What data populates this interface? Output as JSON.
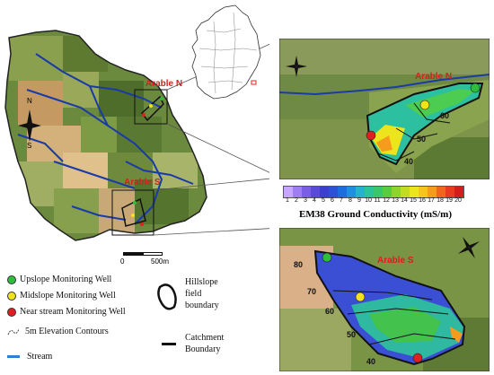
{
  "arable_north_label": "Arable N",
  "arable_south_label": "Arable S",
  "north_letter": "N",
  "south_letter": "S",
  "scale": {
    "zero": "0",
    "distance": "500m"
  },
  "colorbar": {
    "ticks": [
      "1",
      "2",
      "3",
      "4",
      "5",
      "6",
      "7",
      "8",
      "9",
      "10",
      "11",
      "12",
      "13",
      "14",
      "15",
      "16",
      "17",
      "18",
      "19",
      "20"
    ],
    "colors": [
      "#c6a6ff",
      "#9f7df2",
      "#7a5fe6",
      "#5a4ad9",
      "#3b3fcf",
      "#2c50d6",
      "#1e6ddf",
      "#1f8fe0",
      "#24b3c8",
      "#2bc39a",
      "#3ac66a",
      "#59cc3b",
      "#8fd32c",
      "#c2dc22",
      "#ede51b",
      "#f6c41b",
      "#f69c1d",
      "#f1661f",
      "#e83a20",
      "#d41e1e"
    ],
    "title": "EM38 Ground Conductivity (mS/m)"
  },
  "legend": {
    "upslope": "Upslope Monitoring Well",
    "midslope": "Midslope Monitoring Well",
    "nearstream": "Near stream Monitoring Well",
    "contours": "5m Elevation Contours",
    "stream": "Stream",
    "hillslope_line1": "Hillslope",
    "hillslope_line2": "field",
    "hillslope_line3": "boundary",
    "catchment_line1": "Catchment",
    "catchment_line2": "Boundary"
  },
  "north_inset_contours": [
    "60",
    "50",
    "40"
  ],
  "south_inset_contours": [
    "80",
    "70",
    "60",
    "50",
    "40"
  ],
  "colors": {
    "upslope_well": "#2dbf3a",
    "midslope_well": "#f2e21c",
    "nearstream_well": "#e02020",
    "stream": "#1a3aa8",
    "arable_label": "#d81e1e"
  }
}
